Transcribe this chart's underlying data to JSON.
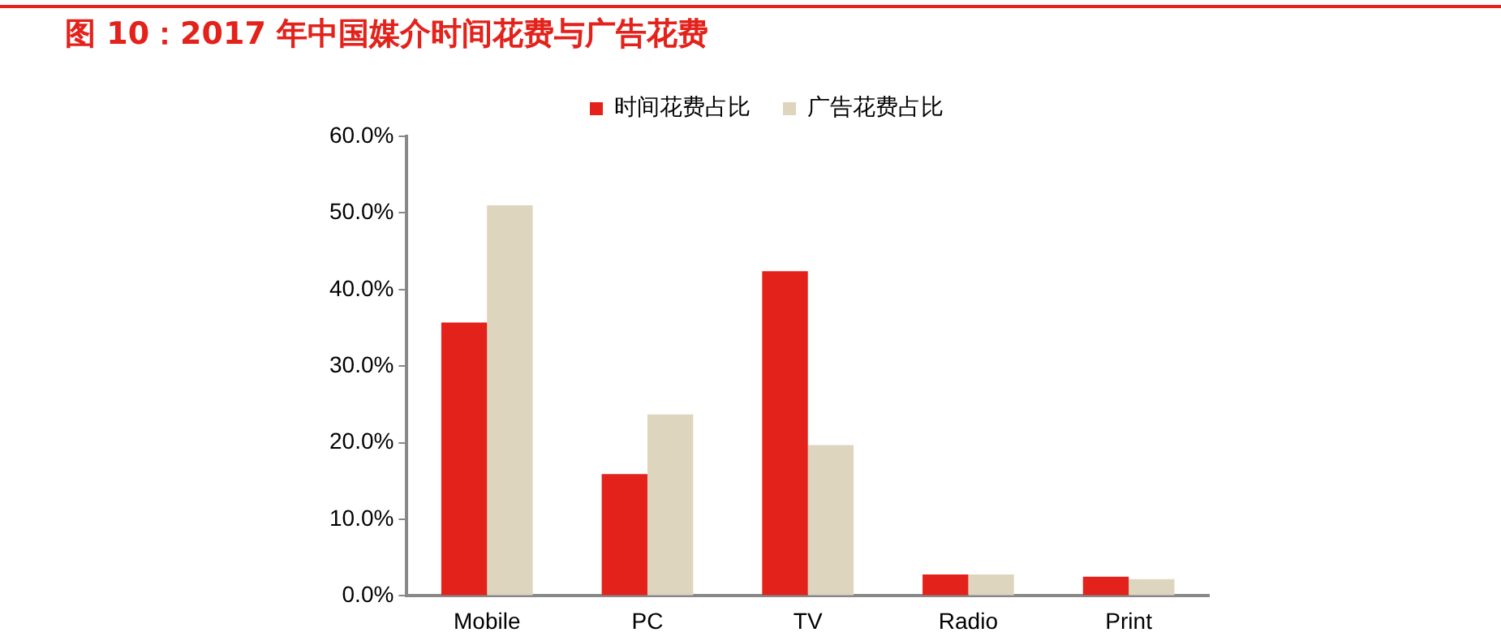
{
  "chart_data": {
    "type": "bar",
    "title": "图 10：2017 年中国媒介时间花费与广告花费",
    "categories": [
      "Mobile",
      "PC",
      "TV",
      "Radio",
      "Print"
    ],
    "series": [
      {
        "name": "时间花费占比",
        "color": "#e3221b",
        "values": [
          35.7,
          15.9,
          42.4,
          2.8,
          2.5
        ]
      },
      {
        "name": "广告花费占比",
        "color": "#ded5be",
        "values": [
          51.0,
          23.7,
          19.7,
          2.8,
          2.2
        ]
      }
    ],
    "ylim": [
      0,
      60
    ],
    "yticks": [
      {
        "value": 0,
        "label": "0.0%"
      },
      {
        "value": 10,
        "label": "10.0%"
      },
      {
        "value": 20,
        "label": "20.0%"
      },
      {
        "value": 30,
        "label": "30.0%"
      },
      {
        "value": 40,
        "label": "40.0%"
      },
      {
        "value": 50,
        "label": "50.0%"
      },
      {
        "value": 60,
        "label": "60.0%"
      }
    ],
    "grid": false,
    "legend": "top"
  }
}
